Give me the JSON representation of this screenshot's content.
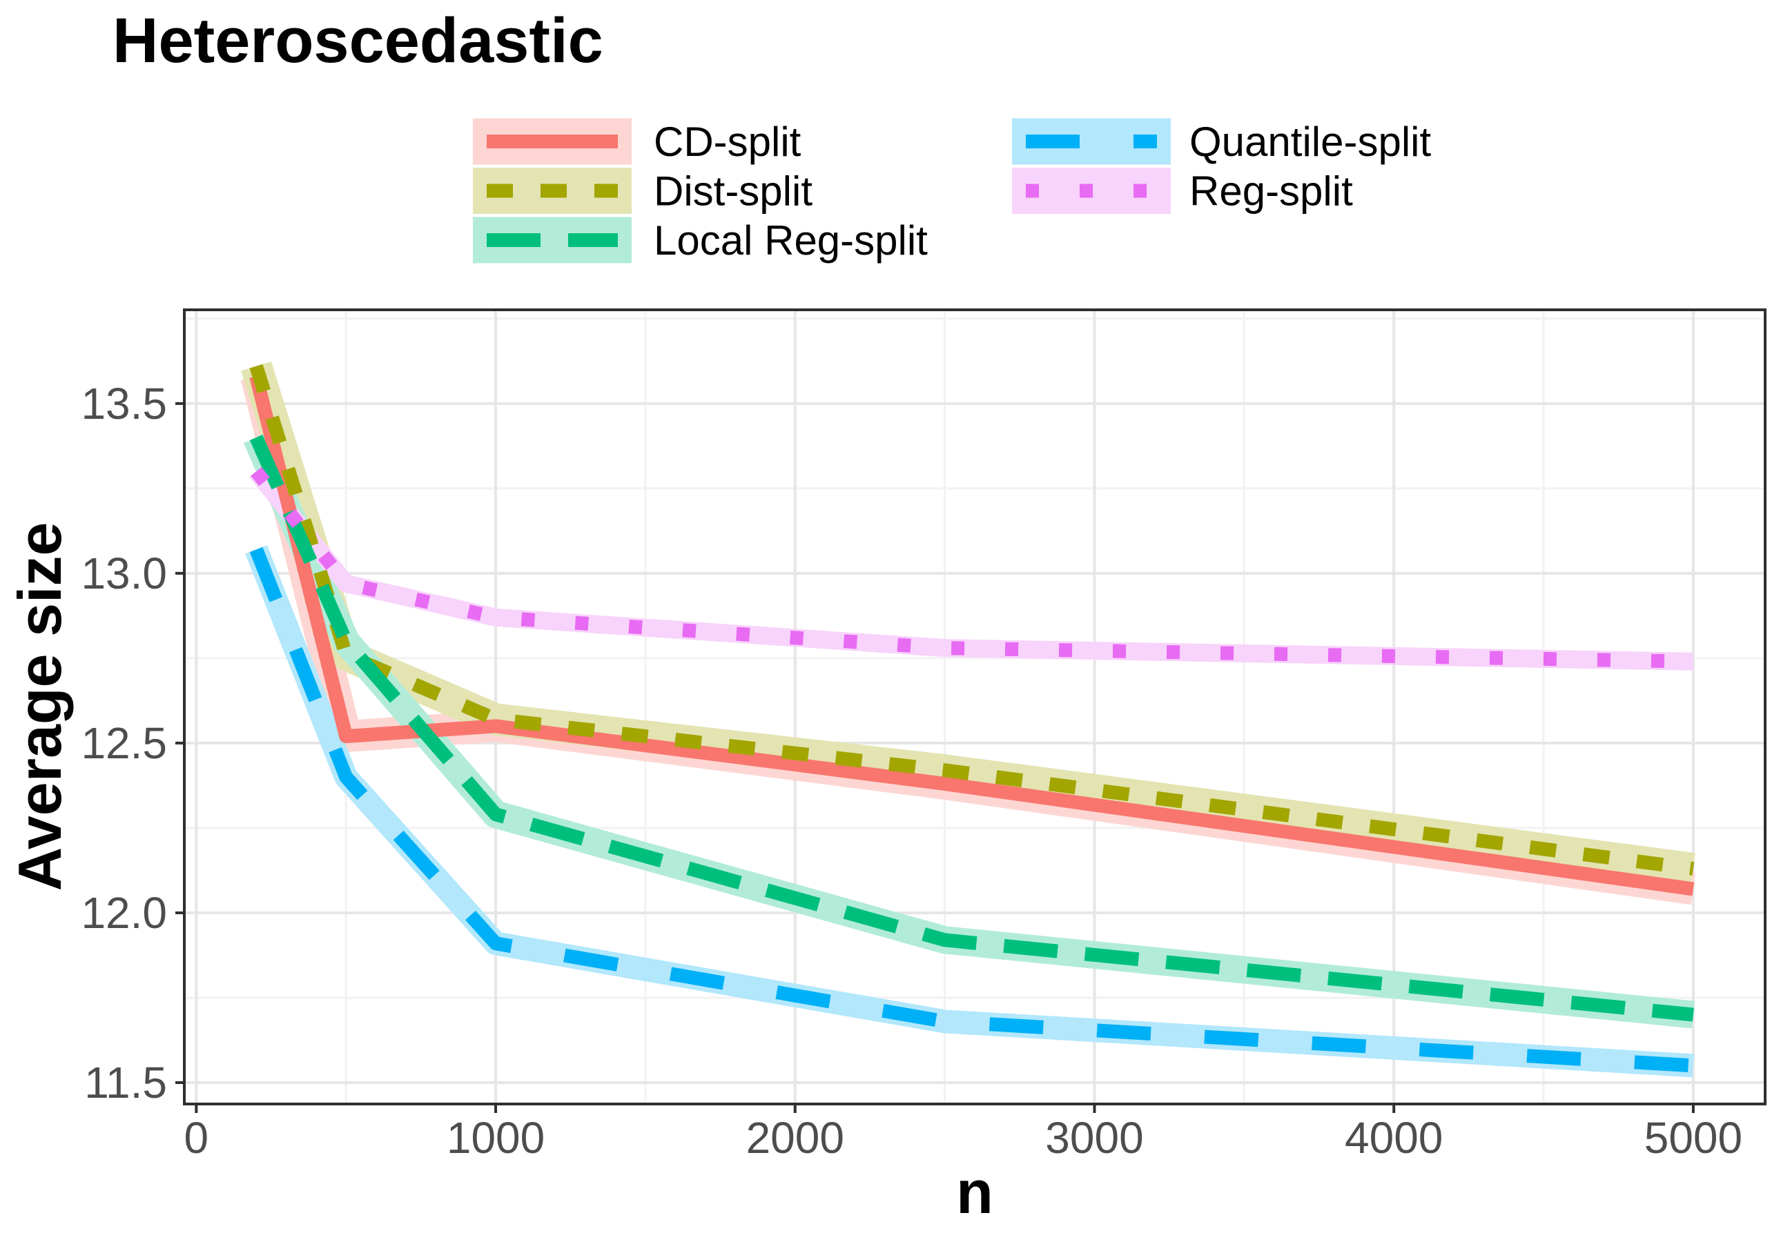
{
  "chart_data": {
    "type": "line",
    "title": "Heteroscedastic",
    "xlabel": "n",
    "ylabel": "Average size",
    "x": [
      200,
      500,
      1000,
      2500,
      5000
    ],
    "xlim": [
      -40,
      5240
    ],
    "ylim": [
      11.437,
      13.776
    ],
    "x_ticks": [
      0,
      1000,
      2000,
      3000,
      4000,
      5000
    ],
    "x_tick_labels": [
      "0",
      "1000",
      "2000",
      "3000",
      "4000",
      "5000"
    ],
    "x_minor_ticks": [
      500,
      1500,
      2500,
      3500,
      4500
    ],
    "y_ticks": [
      13.5,
      13.0,
      12.5,
      12.0,
      11.5
    ],
    "y_tick_labels": [
      "13.5",
      "13.0",
      "12.5",
      "12.0",
      "11.5"
    ],
    "y_minor_ticks": [
      13.75,
      13.25,
      12.75,
      12.25,
      11.75
    ],
    "grid": "major and minor gridlines, light grey on white panel",
    "legend_position": "top-center, two columns, keys on ribbon-colored swatches",
    "series": [
      {
        "name": "CD-split",
        "color": "#F8766D",
        "ribbon_color": "#FDD6D3",
        "linetype": "solid",
        "values": [
          13.58,
          12.52,
          12.55,
          12.38,
          12.07
        ]
      },
      {
        "name": "Dist-split",
        "color": "#A3A500",
        "ribbon_color": "#E3E4B2",
        "linetype": "dashed",
        "values": [
          13.61,
          12.76,
          12.57,
          12.42,
          12.13
        ]
      },
      {
        "name": "Local Reg-split",
        "color": "#00BF7D",
        "ribbon_color": "#B2ECD8",
        "linetype": "longdash",
        "values": [
          13.4,
          12.8,
          12.29,
          11.92,
          11.7
        ]
      },
      {
        "name": "Quantile-split",
        "color": "#00B0F6",
        "ribbon_color": "#B2E7FC",
        "linetype": "longdash-sparse",
        "values": [
          13.07,
          12.4,
          11.91,
          11.68,
          11.55
        ]
      },
      {
        "name": "Reg-split",
        "color": "#E76BF3",
        "ribbon_color": "#F8D3FB",
        "linetype": "dotted",
        "values": [
          13.3,
          12.97,
          12.87,
          12.78,
          12.74
        ]
      }
    ],
    "legend_columns": [
      [
        "CD-split",
        "Dist-split",
        "Local Reg-split"
      ],
      [
        "Quantile-split",
        "Reg-split"
      ]
    ],
    "colors": {
      "panel_border": "#2F2F2F",
      "tick_mark": "#2F2F2F",
      "axis_text": "#4D4D4D",
      "grid_major": "#E6E6E6",
      "grid_minor": "#F2F2F2",
      "background": "#FFFFFF"
    }
  }
}
